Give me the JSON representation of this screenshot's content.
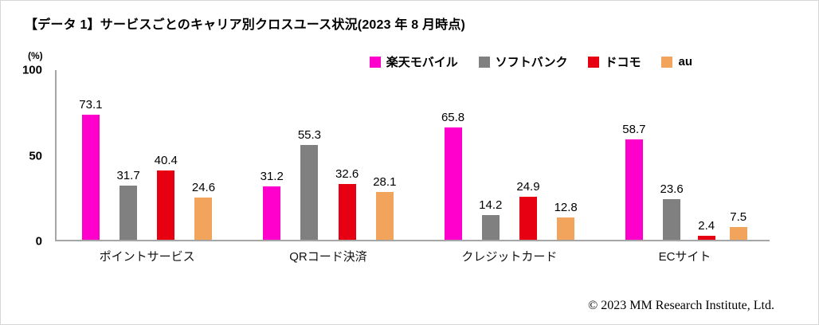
{
  "title": "【データ 1】サービスごとのキャリア別クロスユース状況(2023 年 8 月時点)",
  "y_axis": {
    "unit_label": "(%)",
    "ticks": [
      "100",
      "50",
      "0"
    ]
  },
  "footer": "© 2023 MM Research Institute, Ltd.",
  "chart_data": {
    "type": "bar",
    "title": "【データ 1】サービスごとのキャリア別クロスユース状況(2023 年 8 月時点)",
    "categories": [
      "ポイントサービス",
      "QRコード決済",
      "クレジットカード",
      "ECサイト"
    ],
    "series": [
      {
        "name": "楽天モバイル",
        "color": "#FF00CC",
        "values": [
          73.1,
          31.2,
          65.8,
          58.7
        ]
      },
      {
        "name": "ソフトバンク",
        "color": "#808080",
        "values": [
          31.7,
          55.3,
          14.2,
          23.6
        ]
      },
      {
        "name": "ドコモ",
        "color": "#E60012",
        "values": [
          40.4,
          32.6,
          24.9,
          2.4
        ]
      },
      {
        "name": "au",
        "color": "#F2A35C",
        "values": [
          24.6,
          28.1,
          12.8,
          7.5
        ]
      }
    ],
    "xlabel": "",
    "ylabel": "(%)",
    "ylim": [
      0,
      100
    ],
    "grid": false,
    "legend_position": "top-right"
  }
}
